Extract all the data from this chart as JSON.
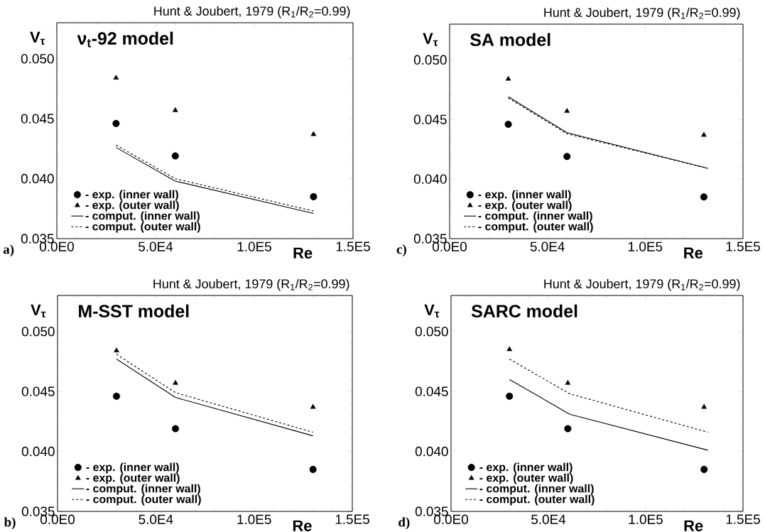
{
  "chart_data": [
    {
      "type": "scatter",
      "title": "Hunt & Joubert, 1979 (R$_{1}$/R$_{2}$=0.99)",
      "subtitle": "ν$_{t}$-92 model",
      "xlabel": "Re",
      "ylabel": "V$_{τ}$",
      "annotations": [
        "a)"
      ],
      "xlim": [
        0,
        150000
      ],
      "ylim": [
        0.035,
        0.053
      ],
      "xticks": [
        {
          "value": 0,
          "label": "0.0E0"
        },
        {
          "value": 50000,
          "label": "5.0E4"
        },
        {
          "value": 100000,
          "label": "1.0E5"
        },
        {
          "value": 150000,
          "label": "1.5E5"
        }
      ],
      "yticks": [
        {
          "value": 0.035,
          "label": "0.035"
        },
        {
          "value": 0.04,
          "label": "0.040"
        },
        {
          "value": 0.045,
          "label": "0.045"
        },
        {
          "value": 0.05,
          "label": "0.050"
        }
      ],
      "legend": "bottom left",
      "series": [
        {
          "name": "- exp. (inner wall)",
          "marker": "circle",
          "color": "#000000",
          "x": [
            30000,
            60000,
            130000
          ],
          "values": [
            0.0446,
            0.0419,
            0.0385
          ]
        },
        {
          "name": "- exp. (outer wall)",
          "marker": "triangle",
          "color": "#000000",
          "x": [
            30000,
            60000,
            130000
          ],
          "values": [
            0.0484,
            0.0457,
            0.0437
          ]
        },
        {
          "name": "- comput. (inner wall)",
          "type": "line",
          "line_style": "solid",
          "color": "#000000",
          "x": [
            30000,
            60000,
            130000
          ],
          "values": [
            0.0426,
            0.0398,
            0.0371
          ]
        },
        {
          "name": "- comput. (outer wall)",
          "type": "line",
          "line_style": "dashed",
          "color": "#000000",
          "x": [
            30000,
            60000,
            130000
          ],
          "values": [
            0.0428,
            0.04,
            0.0373
          ]
        }
      ]
    },
    {
      "type": "scatter",
      "title": "Hunt & Joubert, 1979 (R$_{1}$/R$_{2}$=0.99)",
      "subtitle": "SA model",
      "xlabel": "Re",
      "ylabel": "V$_{τ}$",
      "annotations": [
        "c)"
      ],
      "xlim": [
        0,
        150000
      ],
      "ylim": [
        0.035,
        0.053
      ],
      "xticks": [
        {
          "value": 0,
          "label": "0.0E0"
        },
        {
          "value": 50000,
          "label": "5.0E4"
        },
        {
          "value": 100000,
          "label": "1.0E5"
        },
        {
          "value": 150000,
          "label": "1.5E5"
        }
      ],
      "yticks": [
        {
          "value": 0.035,
          "label": "0.035"
        },
        {
          "value": 0.04,
          "label": "0.040"
        },
        {
          "value": 0.045,
          "label": "0.045"
        },
        {
          "value": 0.05,
          "label": "0.050"
        }
      ],
      "legend": "bottom left",
      "series": [
        {
          "name": "- exp. (inner wall)",
          "marker": "circle",
          "color": "#000000",
          "x": [
            30000,
            60000,
            130000
          ],
          "values": [
            0.0446,
            0.0419,
            0.0385
          ]
        },
        {
          "name": "- exp. (outer wall)",
          "marker": "triangle",
          "color": "#000000",
          "x": [
            30000,
            60000,
            130000
          ],
          "values": [
            0.0484,
            0.0457,
            0.0437
          ]
        },
        {
          "name": "- comput. (inner wall)",
          "type": "line",
          "line_style": "solid",
          "color": "#000000",
          "x": [
            30000,
            60000,
            132000
          ],
          "values": [
            0.0469,
            0.0439,
            0.0409
          ]
        },
        {
          "name": "- comput. (outer wall)",
          "type": "line",
          "line_style": "dashed",
          "color": "#000000",
          "x": [
            30000,
            60000,
            132000
          ],
          "values": [
            0.0468,
            0.0438,
            0.0409
          ]
        }
      ]
    },
    {
      "type": "scatter",
      "title": "Hunt & Joubert, 1979 (R$_{1}$/R$_{2}$=0.99)",
      "subtitle": "M-SST model",
      "xlabel": "Re",
      "ylabel": "V$_{τ}$",
      "annotations": [
        "b)"
      ],
      "xlim": [
        0,
        150000
      ],
      "ylim": [
        0.035,
        0.053
      ],
      "xticks": [
        {
          "value": 0,
          "label": "0.0E0"
        },
        {
          "value": 50000,
          "label": "5.0E4"
        },
        {
          "value": 100000,
          "label": "1.0E5"
        },
        {
          "value": 150000,
          "label": "1.5E5"
        }
      ],
      "yticks": [
        {
          "value": 0.035,
          "label": "0.035"
        },
        {
          "value": 0.04,
          "label": "0.040"
        },
        {
          "value": 0.045,
          "label": "0.045"
        },
        {
          "value": 0.05,
          "label": "0.050"
        }
      ],
      "legend": "bottom left",
      "series": [
        {
          "name": "- exp. (inner wall)",
          "marker": "circle",
          "color": "#000000",
          "x": [
            30000,
            60000,
            130000
          ],
          "values": [
            0.0446,
            0.0419,
            0.0385
          ]
        },
        {
          "name": "- exp. (outer wall)",
          "marker": "triangle",
          "color": "#000000",
          "x": [
            30000,
            60000,
            130000
          ],
          "values": [
            0.0484,
            0.0457,
            0.0437
          ]
        },
        {
          "name": "- comput. (inner wall)",
          "type": "line",
          "line_style": "solid",
          "color": "#000000",
          "x": [
            30000,
            60000,
            130000
          ],
          "values": [
            0.0477,
            0.0445,
            0.0413
          ]
        },
        {
          "name": "- comput. (outer wall)",
          "type": "line",
          "line_style": "dashed",
          "color": "#000000",
          "x": [
            30000,
            60000,
            130000
          ],
          "values": [
            0.0481,
            0.0449,
            0.0416
          ]
        }
      ]
    },
    {
      "type": "scatter",
      "title": "Hunt & Joubert, 1979 (R$_{1}$/R$_{2}$=0.99)",
      "subtitle": "SARC model",
      "xlabel": "Re",
      "ylabel": "V$_{τ}$",
      "annotations": [
        "d)"
      ],
      "xlim": [
        0,
        150000
      ],
      "ylim": [
        0.035,
        0.053
      ],
      "xticks": [
        {
          "value": 0,
          "label": "0.0E0"
        },
        {
          "value": 50000,
          "label": "5.0E4"
        },
        {
          "value": 100000,
          "label": "1.0E5"
        },
        {
          "value": 150000,
          "label": "1.5E5"
        }
      ],
      "yticks": [
        {
          "value": 0.035,
          "label": "0.035"
        },
        {
          "value": 0.04,
          "label": "0.040"
        },
        {
          "value": 0.045,
          "label": "0.045"
        },
        {
          "value": 0.05,
          "label": "0.050"
        }
      ],
      "legend": "bottom left",
      "series": [
        {
          "name": "- exp. (inner wall)",
          "marker": "circle",
          "color": "#000000",
          "x": [
            30000,
            60000,
            130000
          ],
          "values": [
            0.0446,
            0.0419,
            0.0385
          ]
        },
        {
          "name": "- exp. (outer wall)",
          "marker": "triangle",
          "color": "#000000",
          "x": [
            30000,
            60000,
            130000
          ],
          "values": [
            0.0485,
            0.0457,
            0.0437
          ]
        },
        {
          "name": "- comput. (inner wall)",
          "type": "line",
          "line_style": "solid",
          "color": "#000000",
          "x": [
            30000,
            61000,
            132000
          ],
          "values": [
            0.046,
            0.0431,
            0.0401
          ]
        },
        {
          "name": "- comput. (outer wall)",
          "type": "line",
          "line_style": "dashed",
          "color": "#000000",
          "x": [
            30000,
            61000,
            132000
          ],
          "values": [
            0.0477,
            0.0448,
            0.0416
          ]
        }
      ]
    }
  ]
}
